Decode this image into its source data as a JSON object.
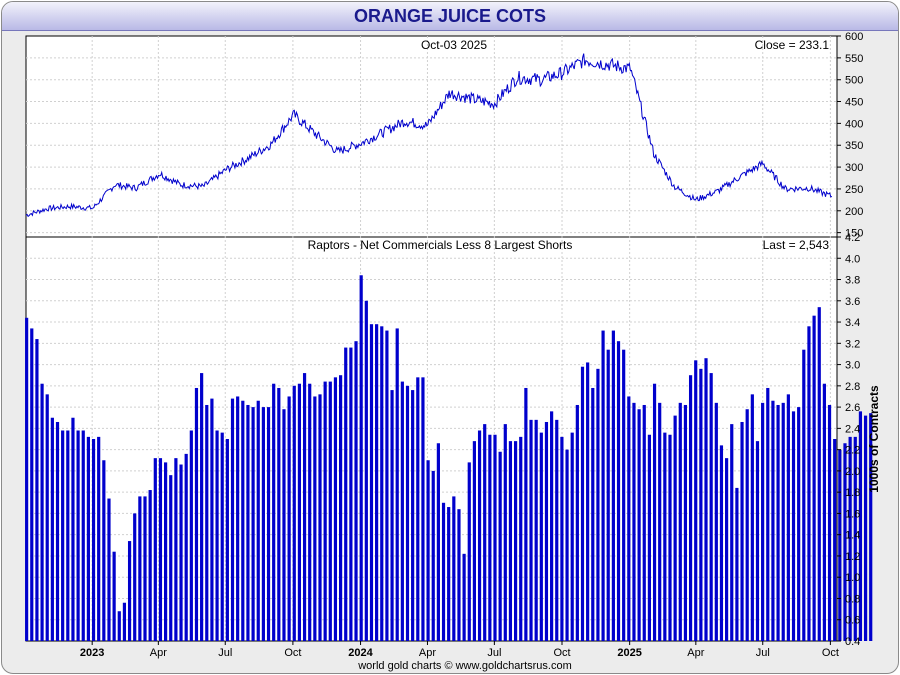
{
  "header": {
    "title": "ORANGE JUICE COTS"
  },
  "footer": {
    "credit": "world gold charts © www.goldchartsrus.com"
  },
  "x_axis": {
    "ticks": [
      {
        "label": "2023",
        "bold": true,
        "date": "2023-01-01"
      },
      {
        "label": "Apr",
        "bold": false,
        "date": "2023-04-01"
      },
      {
        "label": "Jul",
        "bold": false,
        "date": "2023-07-01"
      },
      {
        "label": "Oct",
        "bold": false,
        "date": "2023-10-01"
      },
      {
        "label": "2024",
        "bold": true,
        "date": "2024-01-01"
      },
      {
        "label": "Apr",
        "bold": false,
        "date": "2024-04-01"
      },
      {
        "label": "Jul",
        "bold": false,
        "date": "2024-07-01"
      },
      {
        "label": "Oct",
        "bold": false,
        "date": "2024-10-01"
      },
      {
        "label": "2025",
        "bold": true,
        "date": "2025-01-01"
      },
      {
        "label": "Apr",
        "bold": false,
        "date": "2025-04-01"
      },
      {
        "label": "Jul",
        "bold": false,
        "date": "2025-07-01"
      },
      {
        "label": "Oct",
        "bold": false,
        "date": "2025-10-01"
      }
    ],
    "range": [
      "2022-10-03",
      "2025-10-10"
    ]
  },
  "chart_data": [
    {
      "type": "line",
      "title": "Oct-03  2025",
      "annotation": "Close = 233.1",
      "color": "#0000cc",
      "ylim": [
        140,
        600
      ],
      "yticks": [
        150,
        200,
        250,
        300,
        350,
        400,
        450,
        500,
        550,
        600
      ],
      "y_axis_side": "right",
      "grid": true,
      "x": [
        "2022-10-03",
        "2022-11-01",
        "2022-12-01",
        "2023-01-02",
        "2023-02-01",
        "2023-03-01",
        "2023-04-03",
        "2023-05-01",
        "2023-06-01",
        "2023-07-03",
        "2023-08-01",
        "2023-09-01",
        "2023-10-02",
        "2023-11-01",
        "2023-12-01",
        "2024-01-02",
        "2024-02-01",
        "2024-03-01",
        "2024-04-01",
        "2024-05-01",
        "2024-06-03",
        "2024-07-01",
        "2024-08-01",
        "2024-09-03",
        "2024-10-01",
        "2024-11-01",
        "2024-12-02",
        "2025-01-02",
        "2025-02-03",
        "2025-03-03",
        "2025-04-01",
        "2025-05-01",
        "2025-06-02",
        "2025-07-01",
        "2025-08-01",
        "2025-09-02",
        "2025-10-03"
      ],
      "y": [
        190,
        205,
        210,
        206,
        260,
        252,
        285,
        260,
        255,
        295,
        320,
        352,
        420,
        375,
        335,
        355,
        380,
        405,
        395,
        470,
        455,
        445,
        505,
        500,
        515,
        545,
        535,
        525,
        330,
        255,
        225,
        245,
        280,
        308,
        250,
        252,
        233
      ]
    },
    {
      "type": "bar",
      "title": "Raptors - Net Commercials Less 8 Largest Shorts",
      "annotation": "Last = 2,543",
      "color": "#0000cc",
      "ylabel": "1000s of Contracts",
      "ylim": [
        0.4,
        4.2
      ],
      "yticks": [
        "0.4",
        "0.6",
        "0.8",
        "1.0",
        "1.2",
        "1.4",
        "1.6",
        "1.8",
        "2.0",
        "2.2",
        "2.4",
        "2.6",
        "2.8",
        "3.0",
        "3.2",
        "3.4",
        "3.6",
        "3.8",
        "4.0",
        "4.2"
      ],
      "y_axis_side": "right",
      "grid": true,
      "start_date": "2022-10-04",
      "interval_days": 7,
      "values": [
        3.44,
        3.34,
        3.24,
        2.82,
        2.72,
        2.5,
        2.46,
        2.38,
        2.38,
        2.5,
        2.38,
        2.38,
        2.32,
        2.3,
        2.32,
        2.1,
        1.74,
        1.24,
        0.68,
        0.76,
        1.34,
        1.6,
        1.76,
        1.76,
        1.82,
        2.12,
        2.12,
        2.08,
        1.96,
        2.12,
        2.06,
        2.16,
        2.38,
        2.78,
        2.92,
        2.62,
        2.68,
        2.38,
        2.36,
        2.3,
        2.68,
        2.7,
        2.66,
        2.62,
        2.6,
        2.66,
        2.6,
        2.6,
        2.82,
        2.78,
        2.58,
        2.7,
        2.8,
        2.82,
        2.92,
        2.82,
        2.7,
        2.72,
        2.84,
        2.84,
        2.88,
        2.9,
        3.16,
        3.16,
        3.22,
        3.84,
        3.6,
        3.38,
        3.38,
        3.36,
        3.32,
        2.76,
        3.34,
        2.84,
        2.8,
        2.76,
        2.88,
        2.88,
        2.1,
        2.0,
        2.26,
        1.7,
        1.66,
        1.76,
        1.64,
        1.22,
        2.08,
        2.28,
        2.38,
        2.44,
        2.34,
        2.34,
        2.18,
        2.44,
        2.28,
        2.28,
        2.32,
        2.78,
        2.48,
        2.48,
        2.36,
        2.46,
        2.56,
        2.48,
        2.32,
        2.2,
        2.36,
        2.62,
        2.98,
        3.02,
        2.78,
        2.96,
        3.32,
        3.14,
        3.32,
        3.22,
        3.14,
        2.7,
        2.64,
        2.58,
        2.62,
        2.34,
        2.82,
        2.64,
        2.36,
        2.34,
        2.52,
        2.64,
        2.62,
        2.9,
        3.04,
        2.96,
        3.06,
        2.92,
        2.64,
        2.24,
        2.12,
        2.44,
        1.84,
        2.46,
        2.58,
        2.72,
        2.28,
        2.64,
        2.78,
        2.66,
        2.62,
        2.64,
        2.72,
        2.56,
        2.6,
        3.14,
        3.36,
        3.46,
        3.54,
        2.82,
        2.62,
        2.3,
        2.2,
        2.26,
        2.32,
        2.32,
        2.56,
        2.52,
        2.543
      ]
    }
  ]
}
